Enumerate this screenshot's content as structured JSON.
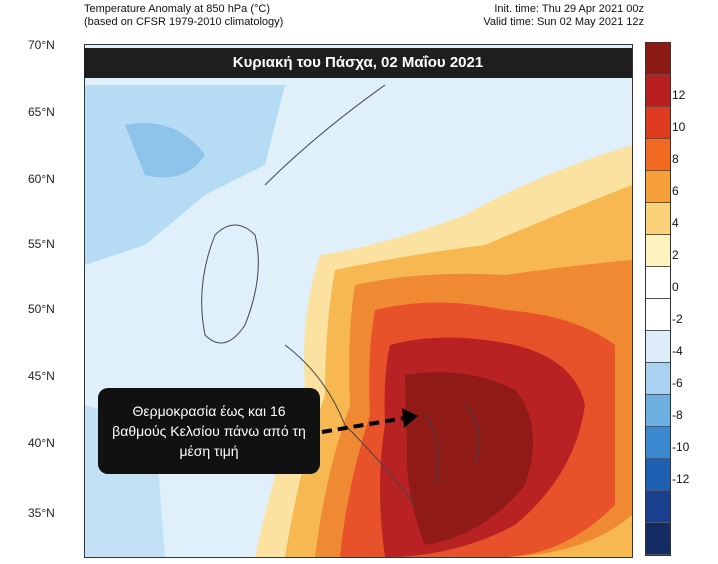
{
  "header": {
    "left_line1": "Temperature Anomaly at 850 hPa (°C)",
    "left_line2": "(based on CFSR 1979-2010 climatology)",
    "right_line1": "Init. time: Thu 29 Apr 2021 00z",
    "right_line2": "Valid time: Sun 02 May 2021 12z"
  },
  "title": "Κυριακή του Πάσχα, 02 Μαΐου 2021",
  "callout": "Θερμοκρασία έως και 16 βαθμούς Κελσίου πάνω από τη μέση τιμή",
  "latitudes": [
    "70°N",
    "65°N",
    "60°N",
    "55°N",
    "50°N",
    "45°N",
    "40°N",
    "35°N"
  ],
  "colorbar": {
    "labels": [
      "12",
      "10",
      "8",
      "6",
      "4",
      "2",
      "0",
      "-2",
      "-4",
      "-6",
      "-8",
      "-10",
      "-12"
    ],
    "colors": [
      "#8c1a14",
      "#b8201f",
      "#de3a20",
      "#f06a22",
      "#f6a03a",
      "#fbd27a",
      "#fff3bd",
      "#ffffff",
      "#ffffff",
      "#dcecf8",
      "#a9d2f0",
      "#6fb0e3",
      "#3c88cf",
      "#1f5fb0",
      "#1a3f8d",
      "#142b63"
    ]
  },
  "colors": {
    "cold": "#cfe6f7",
    "cool": "#9ccbee",
    "warm": "#f7b851",
    "hot": "#e8522a",
    "very_hot": "#b82222",
    "extreme": "#8f1a16"
  }
}
